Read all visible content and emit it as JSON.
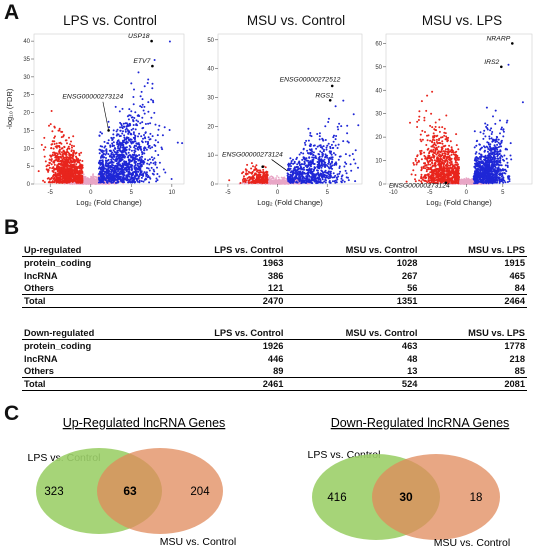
{
  "panels": {
    "a": "A",
    "b": "B",
    "c": "C"
  },
  "volcano": {
    "ylabel": "-log₁₀ (FDR)",
    "xlabel": "Log₂ (Fold Change)",
    "colors": {
      "down": "#e8251d",
      "up": "#1f27d6",
      "ns": "#e8a6c6"
    },
    "plots": [
      {
        "title": "LPS vs. Control",
        "xticks": [
          -5,
          0,
          5,
          10
        ],
        "xlim": [
          -7,
          11.5
        ],
        "yticks": [
          0,
          5,
          10,
          15,
          20,
          25,
          30,
          35,
          40
        ],
        "ylim": [
          0,
          42
        ],
        "labels": [
          {
            "text": "USP18",
            "x": 7.5,
            "y": 40
          },
          {
            "text": "ETV7",
            "x": 7.6,
            "y": 33
          },
          {
            "text": "ENSG00000273124",
            "x": 2.2,
            "y": 15
          }
        ]
      },
      {
        "title": "MSU vs. Control",
        "xticks": [
          -5,
          0,
          5
        ],
        "xlim": [
          -6,
          8.5
        ],
        "yticks": [
          0,
          10,
          20,
          30,
          40,
          50
        ],
        "ylim": [
          0,
          52
        ],
        "labels": [
          {
            "text": "ENSG00000272512",
            "x": 5.5,
            "y": 34
          },
          {
            "text": "RGS1",
            "x": 5.3,
            "y": 29
          },
          {
            "text": "ENSG00000273124",
            "x": -1.5,
            "y": 6
          }
        ]
      },
      {
        "title": "MSU vs. LPS",
        "xticks": [
          -10,
          -5,
          0,
          5
        ],
        "xlim": [
          -11,
          9
        ],
        "yticks": [
          0,
          10,
          20,
          30,
          40,
          50,
          60
        ],
        "ylim": [
          0,
          64
        ],
        "labels": [
          {
            "text": "NRARP",
            "x": 6.3,
            "y": 60
          },
          {
            "text": "IRS2",
            "x": 4.8,
            "y": 50
          },
          {
            "text": "ENSG00000273124",
            "x": -2.8,
            "y": 0.5
          }
        ]
      }
    ]
  },
  "tables": [
    {
      "header": [
        "Up-regulated",
        "LPS vs. Control",
        "MSU vs. Control",
        "MSU vs. LPS"
      ],
      "rows": [
        [
          "protein_coding",
          "1963",
          "1028",
          "1915"
        ],
        [
          "lncRNA",
          "386",
          "267",
          "465"
        ],
        [
          "Others",
          "121",
          "56",
          "84"
        ]
      ],
      "total": [
        "Total",
        "2470",
        "1351",
        "2464"
      ]
    },
    {
      "header": [
        "Down-regulated",
        "LPS vs. Control",
        "MSU vs. Control",
        "MSU vs. LPS"
      ],
      "rows": [
        [
          "protein_coding",
          "1926",
          "463",
          "1778"
        ],
        [
          "lncRNA",
          "446",
          "48",
          "218"
        ],
        [
          "Others",
          "89",
          "13",
          "85"
        ]
      ],
      "total": [
        "Total",
        "2461",
        "524",
        "2081"
      ]
    }
  ],
  "venns": [
    {
      "title": "Up-Regulated lncRNA Genes",
      "left_label": "LPS vs. Control",
      "right_label": "MSU vs. Control",
      "left_only": "323",
      "overlap": "63",
      "right_only": "204"
    },
    {
      "title": "Down-Regulated lncRNA Genes",
      "left_label": "LPS vs. Control",
      "right_label": "MSU vs. Control",
      "left_only": "416",
      "overlap": "30",
      "right_only": "18"
    }
  ],
  "chart_data": [
    {
      "type": "scatter",
      "title": "LPS vs. Control",
      "xlabel": "Log₂ (Fold Change)",
      "ylabel": "-log₁₀ (FDR)",
      "xlim": [
        -7,
        11.5
      ],
      "ylim": [
        0,
        42
      ],
      "annotations": [
        {
          "text": "USP18",
          "x": 7.5,
          "y": 40
        },
        {
          "text": "ETV7",
          "x": 7.6,
          "y": 33
        },
        {
          "text": "ENSG00000273124",
          "x": 2.2,
          "y": 15
        }
      ]
    },
    {
      "type": "scatter",
      "title": "MSU vs. Control",
      "xlabel": "Log₂ (Fold Change)",
      "ylabel": "-log₁₀ (FDR)",
      "xlim": [
        -6,
        8.5
      ],
      "ylim": [
        0,
        52
      ],
      "annotations": [
        {
          "text": "ENSG00000272512",
          "x": 5.5,
          "y": 34
        },
        {
          "text": "RGS1",
          "x": 5.3,
          "y": 29
        },
        {
          "text": "ENSG00000273124",
          "x": -1.5,
          "y": 6
        }
      ]
    },
    {
      "type": "scatter",
      "title": "MSU vs. LPS",
      "xlabel": "Log₂ (Fold Change)",
      "ylabel": "-log₁₀ (FDR)",
      "xlim": [
        -11,
        9
      ],
      "ylim": [
        0,
        64
      ],
      "annotations": [
        {
          "text": "NRARP",
          "x": 6.3,
          "y": 60
        },
        {
          "text": "IRS2",
          "x": 4.8,
          "y": 50
        },
        {
          "text": "ENSG00000273124",
          "x": -2.8,
          "y": 0.5
        }
      ]
    },
    {
      "type": "table",
      "title": "Up-regulated",
      "columns": [
        "LPS vs. Control",
        "MSU vs. Control",
        "MSU vs. LPS"
      ],
      "rows": {
        "protein_coding": [
          1963,
          1028,
          1915
        ],
        "lncRNA": [
          386,
          267,
          465
        ],
        "Others": [
          121,
          56,
          84
        ],
        "Total": [
          2470,
          1351,
          2464
        ]
      }
    },
    {
      "type": "table",
      "title": "Down-regulated",
      "columns": [
        "LPS vs. Control",
        "MSU vs. Control",
        "MSU vs. LPS"
      ],
      "rows": {
        "protein_coding": [
          1926,
          463,
          1778
        ],
        "lncRNA": [
          446,
          48,
          218
        ],
        "Others": [
          89,
          13,
          85
        ],
        "Total": [
          2461,
          524,
          2081
        ]
      }
    }
  ]
}
